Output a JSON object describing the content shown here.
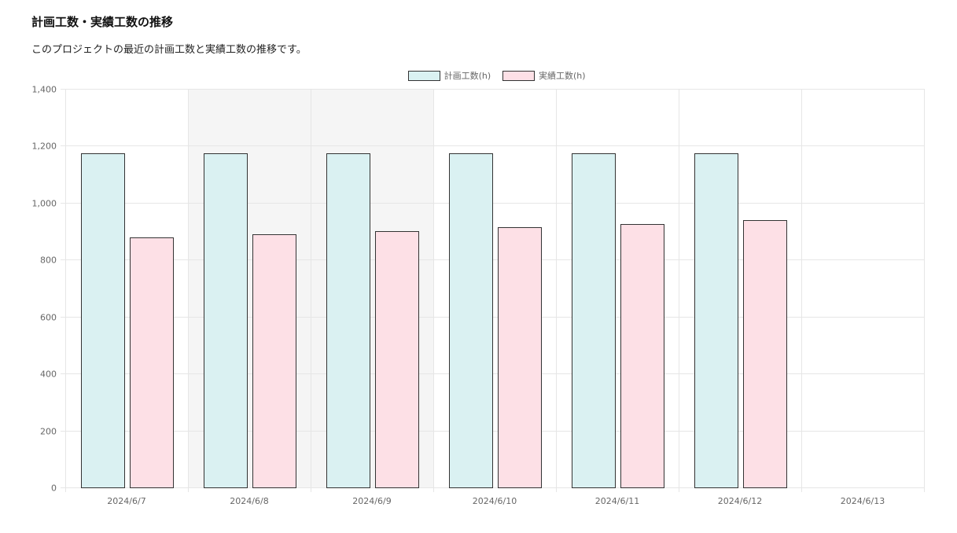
{
  "header": {
    "title": "計画工数・実績工数の推移",
    "description": "このプロジェクトの最近の計画工数と実績工数の推移です。"
  },
  "chart_data": {
    "type": "bar",
    "categories": [
      "2024/6/7",
      "2024/6/8",
      "2024/6/9",
      "2024/6/10",
      "2024/6/11",
      "2024/6/12",
      "2024/6/13"
    ],
    "series": [
      {
        "name": "計画工数(h)",
        "values": [
          1173,
          1173,
          1173,
          1173,
          1173,
          1173,
          null
        ],
        "color": "#daf1f2"
      },
      {
        "name": "実績工数(h)",
        "values": [
          877,
          889,
          901,
          913,
          925,
          938,
          null
        ],
        "color": "#fde0e6"
      }
    ],
    "xlabel": "",
    "ylabel": "",
    "ylim": [
      0,
      1400
    ],
    "yticks": [
      "0",
      "200",
      "400",
      "600",
      "800",
      "1,000",
      "1,200",
      "1,400"
    ],
    "ytick_values": [
      0,
      200,
      400,
      600,
      800,
      1000,
      1200,
      1400
    ],
    "grid": true,
    "legend": "top-center",
    "highlighted_categories": [
      "2024/6/8",
      "2024/6/9"
    ],
    "highlight_color": "#f5f5f5",
    "bar_border_color": "#333333",
    "grid_color": "#e6e6e6"
  }
}
